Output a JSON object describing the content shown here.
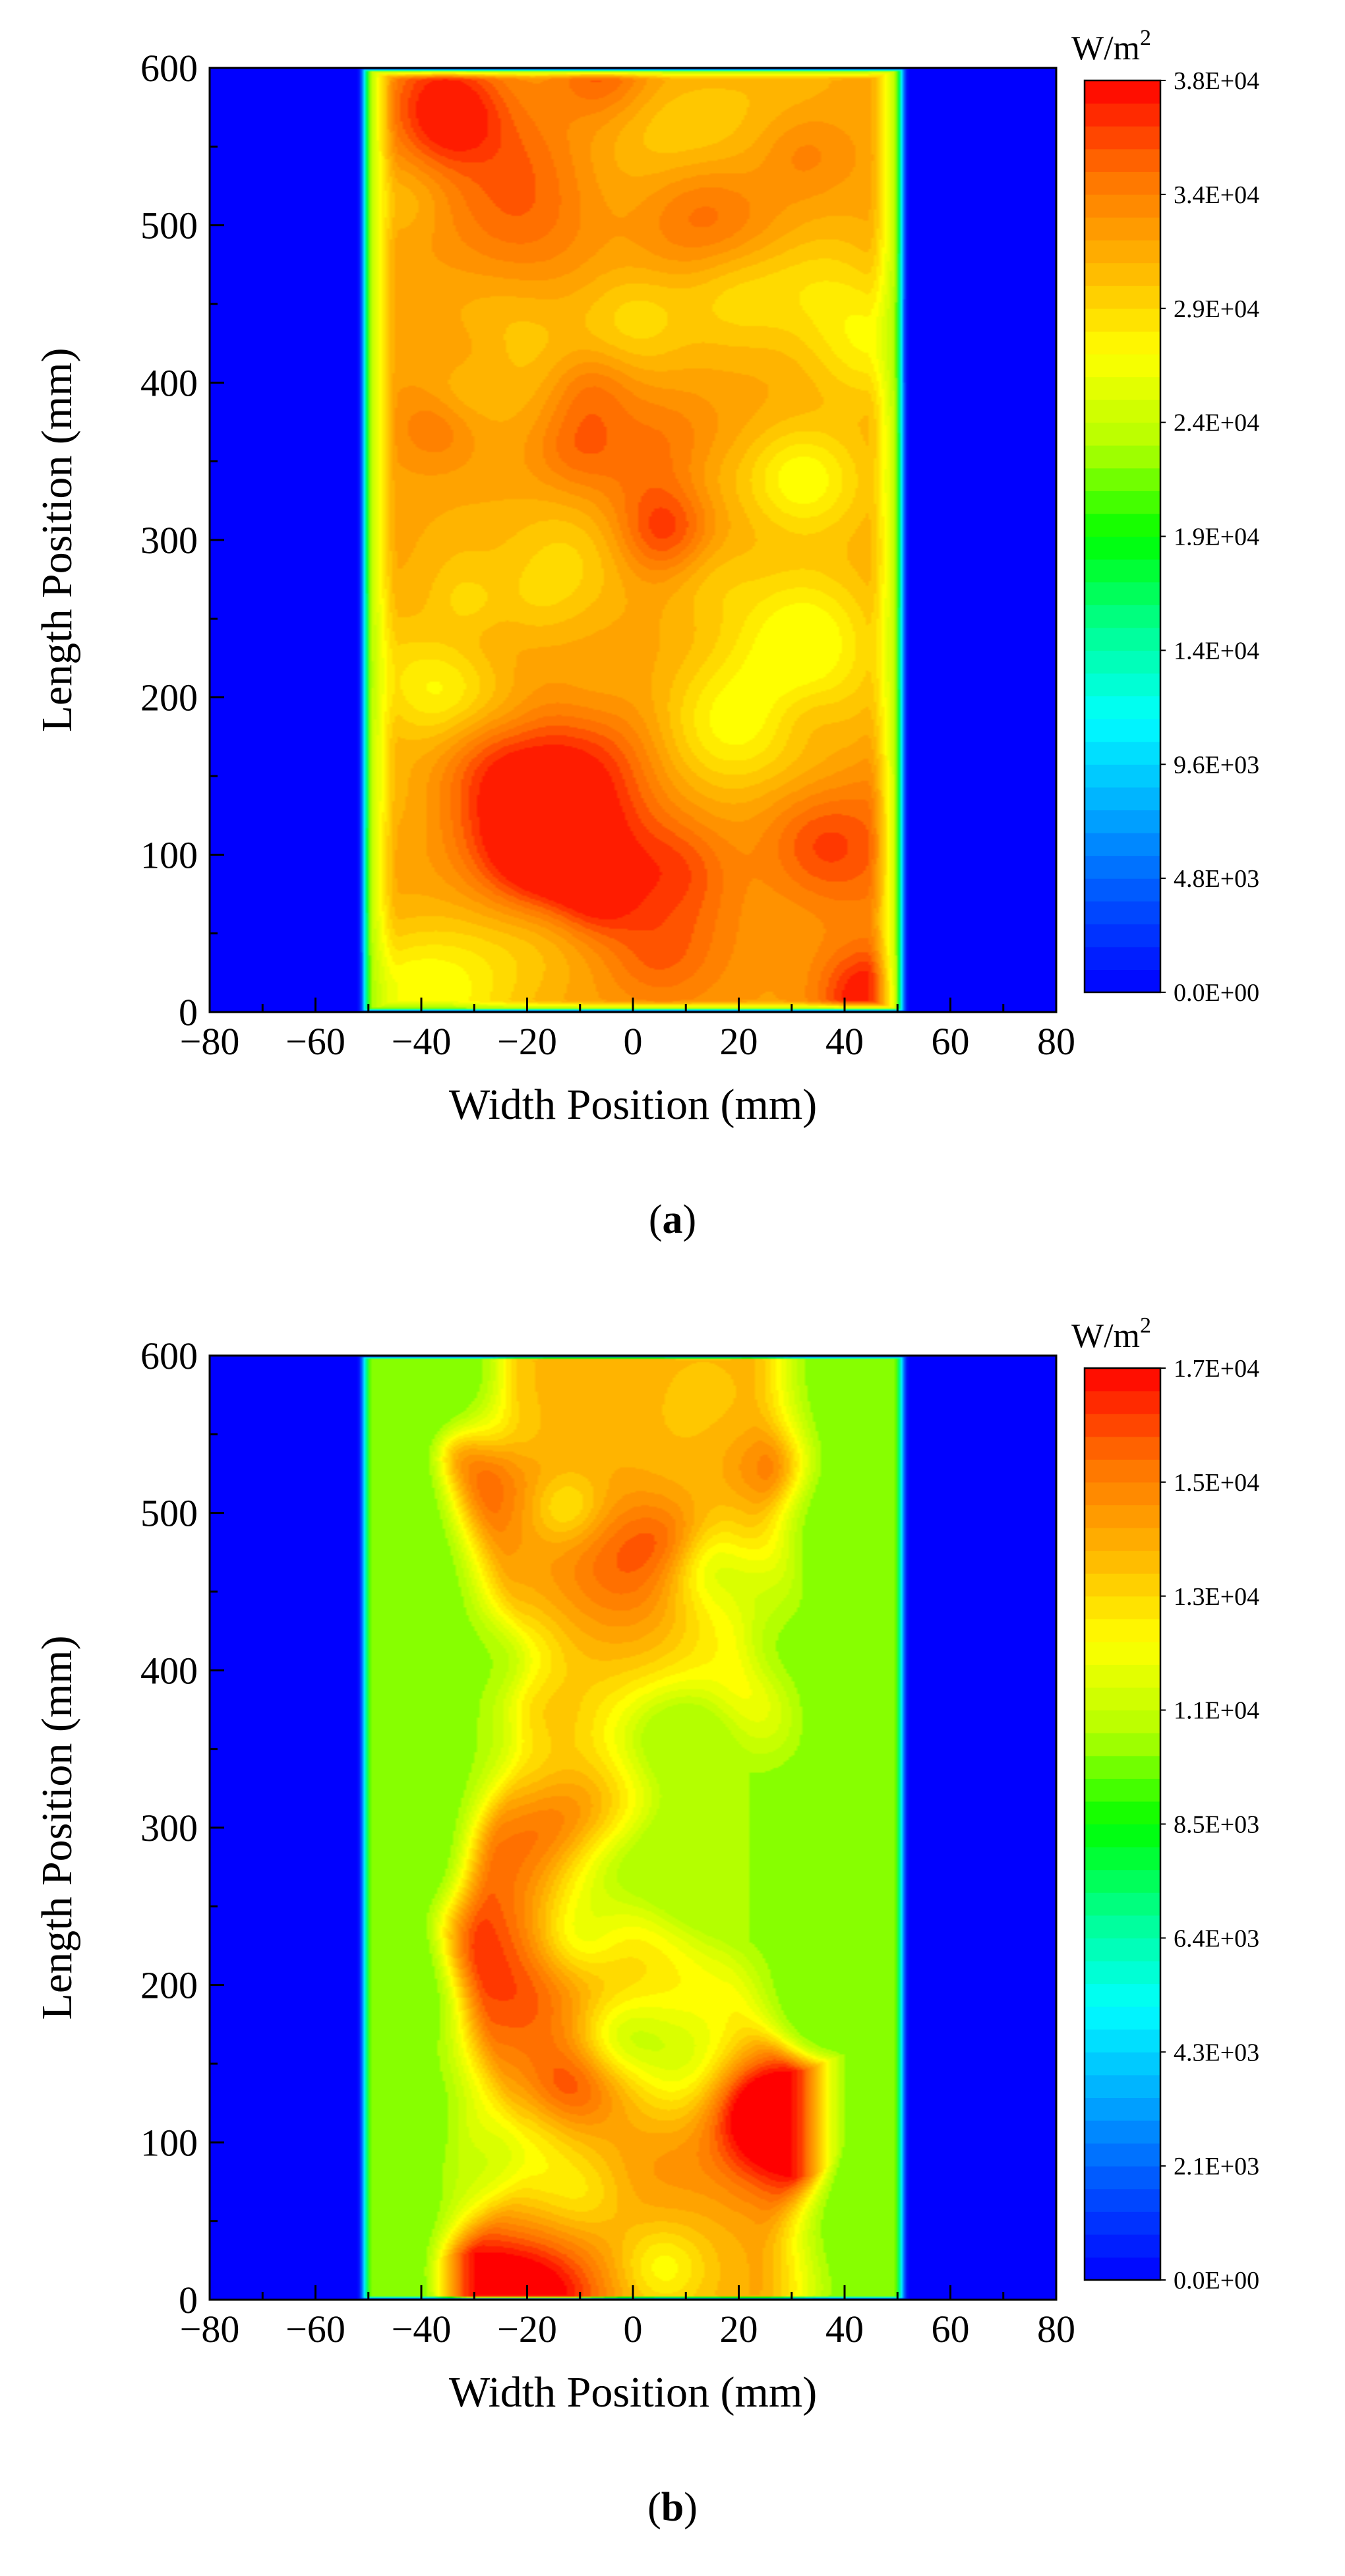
{
  "figure": {
    "colors": {
      "background": "#0000ff",
      "axis": "#000000",
      "colormap": [
        "#0000ff",
        "#0050ff",
        "#00aaff",
        "#00ffff",
        "#00ff90",
        "#00ff00",
        "#b4ff00",
        "#ffff00",
        "#ffb400",
        "#ff7000",
        "#ff0000"
      ]
    }
  },
  "chart_data": [
    {
      "type": "heatmap",
      "panel_label": "a",
      "caption_open": "(",
      "caption_close": ")",
      "xlabel": "Width Position (mm)",
      "ylabel": "Length Position (mm)",
      "xlim": [
        -80,
        80
      ],
      "ylim": [
        0,
        600
      ],
      "x_ticks": [
        "−80",
        "−60",
        "−40",
        "−20",
        "0",
        "20",
        "40",
        "60",
        "80"
      ],
      "y_ticks": [
        "0",
        "100",
        "200",
        "300",
        "400",
        "500",
        "600"
      ],
      "x_tick_values": [
        -80,
        -60,
        -40,
        -20,
        0,
        20,
        40,
        60,
        80
      ],
      "y_tick_values": [
        0,
        100,
        200,
        300,
        400,
        500,
        600
      ],
      "colorbar": {
        "unit_base": "W/m",
        "unit_exp": "2",
        "min": 0,
        "max": 38000,
        "tick_values": [
          0,
          4800,
          9600,
          14000,
          19000,
          24000,
          29000,
          34000,
          38000
        ],
        "tick_labels": [
          "0.0E+00",
          "4.8E+03",
          "9.6E+03",
          "1.4E+04",
          "1.9E+04",
          "2.4E+04",
          "2.9E+04",
          "3.4E+04",
          "3.8E+04"
        ]
      },
      "field": {
        "width_range_mm": [
          -52,
          52
        ],
        "length_range_mm": [
          0,
          600
        ],
        "edge_band_mm": 8,
        "edge_value": 21000,
        "core_mean": 31500,
        "core_variation": 5500,
        "core_shape": "uniform",
        "seed": 7
      }
    },
    {
      "type": "heatmap",
      "panel_label": "b",
      "caption_open": "(",
      "caption_close": ")",
      "xlabel": "Width Position (mm)",
      "ylabel": "Length Position (mm)",
      "xlim": [
        -80,
        80
      ],
      "ylim": [
        0,
        600
      ],
      "x_ticks": [
        "−80",
        "−60",
        "−40",
        "−20",
        "0",
        "20",
        "40",
        "60",
        "80"
      ],
      "y_ticks": [
        "0",
        "100",
        "200",
        "300",
        "400",
        "500",
        "600"
      ],
      "x_tick_values": [
        -80,
        -60,
        -40,
        -20,
        0,
        20,
        40,
        60,
        80
      ],
      "y_tick_values": [
        0,
        100,
        200,
        300,
        400,
        500,
        600
      ],
      "colorbar": {
        "unit_base": "W/m",
        "unit_exp": "2",
        "min": 0,
        "max": 17000,
        "tick_values": [
          0,
          2100,
          4300,
          6400,
          8500,
          11000,
          13000,
          15000,
          17000
        ],
        "tick_labels": [
          "0.0E+00",
          "2.1E+03",
          "4.3E+03",
          "6.4E+03",
          "8.5E+03",
          "1.1E+04",
          "1.3E+04",
          "1.5E+04",
          "1.7E+04"
        ]
      },
      "field": {
        "width_range_mm": [
          -52,
          52
        ],
        "length_range_mm": [
          0,
          600
        ],
        "edge_band_mm": 20,
        "edge_value": 9800,
        "core_mean": 13600,
        "core_variation": 3000,
        "core_shape": "centered",
        "core_halfwidth_mm": 30,
        "seed": 19
      }
    }
  ]
}
